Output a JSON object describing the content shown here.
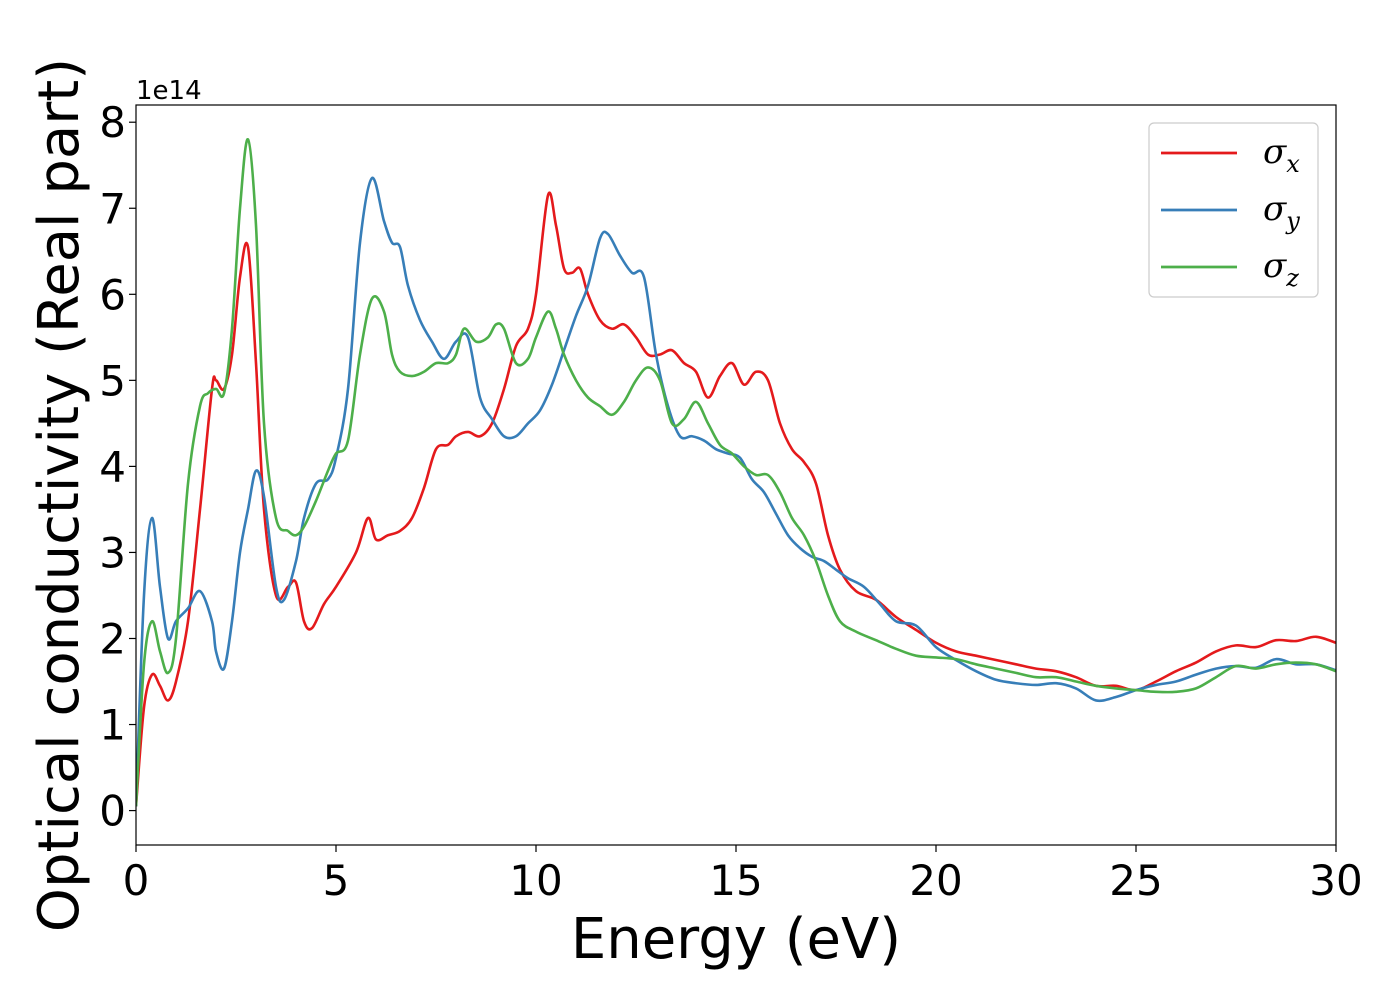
{
  "chart_data": {
    "type": "line",
    "xlabel": "Energy (eV)",
    "ylabel": "Optical conductivity (Real part)",
    "y_offset_label": "1e14",
    "xlim": [
      0,
      30
    ],
    "ylim": [
      -0.4,
      8.2
    ],
    "x_ticks": [
      0,
      5,
      10,
      15,
      20,
      25,
      30
    ],
    "y_ticks": [
      0,
      1,
      2,
      3,
      4,
      5,
      6,
      7,
      8
    ],
    "grid": false,
    "legend_position": "top-right",
    "series": [
      {
        "name": "σx",
        "name_base": "σ",
        "name_sub": "x",
        "color": "#e41a1c",
        "x": [
          0,
          0.2,
          0.4,
          0.6,
          0.8,
          1.0,
          1.3,
          1.6,
          1.9,
          2.0,
          2.2,
          2.4,
          2.6,
          2.8,
          3.0,
          3.2,
          3.5,
          3.8,
          4.0,
          4.2,
          4.4,
          4.7,
          5.0,
          5.5,
          5.8,
          6.0,
          6.3,
          6.6,
          6.9,
          7.2,
          7.5,
          7.8,
          8.0,
          8.3,
          8.6,
          8.9,
          9.2,
          9.5,
          9.8,
          10.0,
          10.3,
          10.5,
          10.7,
          10.9,
          11.1,
          11.3,
          11.6,
          11.9,
          12.2,
          12.5,
          12.8,
          13.1,
          13.4,
          13.7,
          14.0,
          14.3,
          14.6,
          14.9,
          15.2,
          15.5,
          15.8,
          16.1,
          16.4,
          16.7,
          17.0,
          17.3,
          17.6,
          18.0,
          18.5,
          19.0,
          19.5,
          20.0,
          20.5,
          21.0,
          21.5,
          22.0,
          22.5,
          23.0,
          23.5,
          24.0,
          24.5,
          25.0,
          25.5,
          26.0,
          26.5,
          27.0,
          27.5,
          28.0,
          28.5,
          29.0,
          29.5,
          30.0
        ],
        "y": [
          0.05,
          1.2,
          1.58,
          1.45,
          1.28,
          1.5,
          2.2,
          3.5,
          4.9,
          5.0,
          4.9,
          5.3,
          6.2,
          6.55,
          5.2,
          3.5,
          2.5,
          2.6,
          2.65,
          2.2,
          2.12,
          2.4,
          2.6,
          3.0,
          3.4,
          3.15,
          3.2,
          3.25,
          3.4,
          3.75,
          4.2,
          4.25,
          4.35,
          4.4,
          4.35,
          4.5,
          4.9,
          5.4,
          5.6,
          6.0,
          7.15,
          6.8,
          6.3,
          6.25,
          6.3,
          6.0,
          5.7,
          5.6,
          5.65,
          5.5,
          5.3,
          5.3,
          5.35,
          5.2,
          5.1,
          4.8,
          5.05,
          5.2,
          4.95,
          5.1,
          5.0,
          4.5,
          4.2,
          4.05,
          3.8,
          3.2,
          2.8,
          2.55,
          2.45,
          2.25,
          2.1,
          1.95,
          1.85,
          1.8,
          1.75,
          1.7,
          1.65,
          1.62,
          1.55,
          1.45,
          1.45,
          1.4,
          1.5,
          1.62,
          1.72,
          1.85,
          1.92,
          1.9,
          1.98,
          1.97,
          2.02,
          1.95
        ]
      },
      {
        "name": "σy",
        "name_base": "σ",
        "name_sub": "y",
        "color": "#377eb8",
        "x": [
          0,
          0.2,
          0.4,
          0.6,
          0.8,
          1.0,
          1.3,
          1.6,
          1.9,
          2.0,
          2.2,
          2.4,
          2.6,
          2.8,
          3.0,
          3.2,
          3.5,
          3.7,
          4.0,
          4.2,
          4.5,
          4.8,
          5.0,
          5.3,
          5.6,
          5.9,
          6.2,
          6.4,
          6.6,
          6.8,
          7.1,
          7.4,
          7.7,
          8.0,
          8.3,
          8.6,
          8.9,
          9.2,
          9.5,
          9.8,
          10.1,
          10.4,
          10.7,
          11.0,
          11.3,
          11.6,
          11.8,
          12.1,
          12.4,
          12.7,
          13.0,
          13.3,
          13.6,
          13.9,
          14.2,
          14.5,
          14.8,
          15.1,
          15.4,
          15.7,
          16.0,
          16.3,
          16.6,
          16.9,
          17.2,
          17.5,
          17.8,
          18.2,
          18.6,
          19.0,
          19.5,
          20.0,
          20.5,
          21.0,
          21.5,
          22.0,
          22.5,
          23.0,
          23.5,
          24.0,
          24.5,
          25.0,
          25.5,
          26.0,
          26.5,
          27.0,
          27.5,
          28.0,
          28.5,
          29.0,
          29.5,
          30.0
        ],
        "y": [
          0.05,
          2.5,
          3.4,
          2.6,
          2.0,
          2.2,
          2.35,
          2.55,
          2.2,
          1.85,
          1.65,
          2.2,
          3.0,
          3.5,
          3.95,
          3.65,
          2.6,
          2.45,
          2.9,
          3.4,
          3.8,
          3.85,
          4.1,
          4.9,
          6.6,
          7.35,
          6.85,
          6.6,
          6.55,
          6.1,
          5.7,
          5.45,
          5.25,
          5.45,
          5.5,
          4.8,
          4.55,
          4.35,
          4.35,
          4.5,
          4.65,
          4.95,
          5.35,
          5.75,
          6.1,
          6.65,
          6.7,
          6.45,
          6.25,
          6.2,
          5.3,
          4.7,
          4.35,
          4.35,
          4.3,
          4.2,
          4.15,
          4.1,
          3.85,
          3.7,
          3.45,
          3.2,
          3.05,
          2.95,
          2.9,
          2.8,
          2.7,
          2.6,
          2.4,
          2.2,
          2.15,
          1.9,
          1.75,
          1.62,
          1.52,
          1.48,
          1.46,
          1.48,
          1.42,
          1.28,
          1.32,
          1.4,
          1.46,
          1.5,
          1.58,
          1.65,
          1.68,
          1.66,
          1.76,
          1.7,
          1.7,
          1.63
        ]
      },
      {
        "name": "σz",
        "name_base": "σ",
        "name_sub": "z",
        "color": "#4daf4a",
        "x": [
          0,
          0.2,
          0.4,
          0.6,
          0.8,
          1.0,
          1.3,
          1.6,
          1.8,
          2.0,
          2.2,
          2.4,
          2.6,
          2.8,
          3.0,
          3.2,
          3.5,
          3.8,
          4.0,
          4.2,
          4.5,
          4.8,
          5.0,
          5.3,
          5.6,
          5.9,
          6.2,
          6.4,
          6.6,
          6.9,
          7.2,
          7.5,
          7.8,
          8.0,
          8.2,
          8.5,
          8.8,
          9.0,
          9.2,
          9.5,
          9.8,
          10.0,
          10.3,
          10.5,
          10.7,
          11.0,
          11.3,
          11.6,
          11.9,
          12.2,
          12.5,
          12.8,
          13.1,
          13.4,
          13.7,
          14.0,
          14.3,
          14.6,
          14.9,
          15.2,
          15.5,
          15.8,
          16.1,
          16.4,
          16.7,
          17.0,
          17.3,
          17.6,
          18.0,
          18.5,
          19.0,
          19.5,
          20.0,
          20.5,
          21.0,
          21.5,
          22.0,
          22.5,
          23.0,
          23.5,
          24.0,
          24.5,
          25.0,
          25.5,
          26.0,
          26.5,
          27.0,
          27.5,
          28.0,
          28.5,
          29.0,
          29.5,
          30.0
        ],
        "y": [
          0.05,
          1.7,
          2.2,
          1.85,
          1.6,
          2.0,
          3.8,
          4.7,
          4.85,
          4.9,
          4.85,
          5.6,
          7.0,
          7.8,
          6.8,
          4.5,
          3.4,
          3.25,
          3.2,
          3.3,
          3.6,
          3.95,
          4.15,
          4.3,
          5.3,
          5.95,
          5.8,
          5.3,
          5.1,
          5.05,
          5.1,
          5.2,
          5.2,
          5.3,
          5.6,
          5.45,
          5.5,
          5.65,
          5.6,
          5.2,
          5.25,
          5.5,
          5.8,
          5.6,
          5.3,
          5.0,
          4.8,
          4.7,
          4.6,
          4.75,
          5.0,
          5.15,
          5.0,
          4.5,
          4.55,
          4.75,
          4.5,
          4.25,
          4.15,
          4.0,
          3.9,
          3.9,
          3.7,
          3.4,
          3.2,
          2.9,
          2.5,
          2.2,
          2.08,
          1.98,
          1.88,
          1.8,
          1.78,
          1.76,
          1.7,
          1.65,
          1.6,
          1.55,
          1.55,
          1.5,
          1.45,
          1.42,
          1.4,
          1.38,
          1.38,
          1.42,
          1.55,
          1.68,
          1.65,
          1.7,
          1.72,
          1.7,
          1.62
        ]
      }
    ]
  }
}
